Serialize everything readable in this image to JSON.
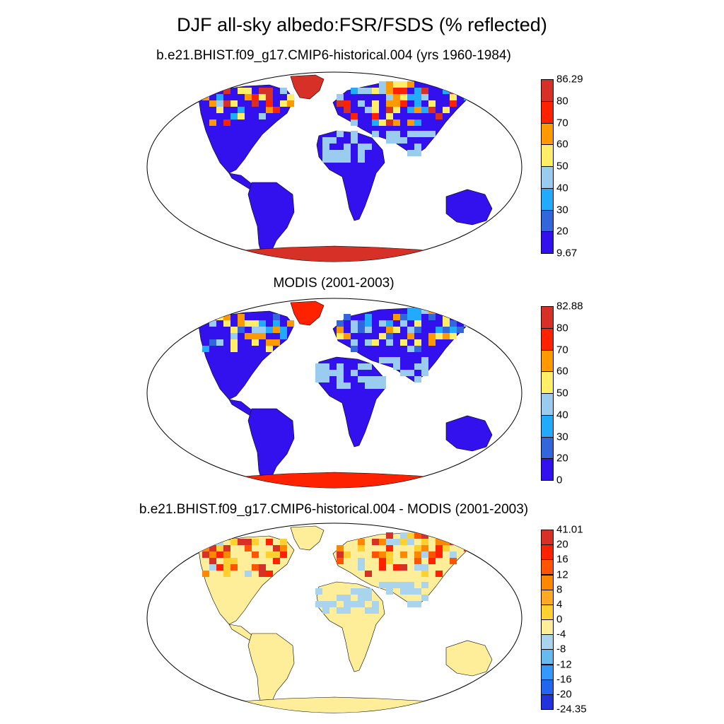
{
  "figure": {
    "title": "DJF all-sky albedo:FSR/FSDS (% reflected)",
    "background": "#ffffff"
  },
  "panels": [
    {
      "title": "b.e21.BHIST.f09_g17.CMIP6-historical.004 (yrs 1960-1984)",
      "colorbar": {
        "labels": [
          "86.29",
          "80",
          "70",
          "60",
          "50",
          "40",
          "30",
          "20",
          "9.67"
        ],
        "colors": [
          "#d73027",
          "#ff2200",
          "#ff9900",
          "#ffee66",
          "#99ccee",
          "#22aaff",
          "#3366dd",
          "#3311ee"
        ]
      },
      "land_color": "#3311ee",
      "ice_color": "#d73027",
      "mid_colors": [
        "#99ccee",
        "#22aaff",
        "#ffee66",
        "#ff9900",
        "#ff2200",
        "#d73027"
      ]
    },
    {
      "title": "MODIS (2001-2003)",
      "colorbar": {
        "labels": [
          "82.88",
          "80",
          "70",
          "60",
          "50",
          "40",
          "30",
          "20",
          "0"
        ],
        "colors": [
          "#d73027",
          "#ff2200",
          "#ff9900",
          "#ffee66",
          "#99ccee",
          "#22aaff",
          "#3366dd",
          "#3311ee"
        ]
      },
      "land_color": "#3311ee",
      "ice_color": "#ff2200",
      "mid_colors": [
        "#99ccee",
        "#22aaff",
        "#ffee66",
        "#ff9900",
        "#3366dd"
      ]
    },
    {
      "title": "b.e21.BHIST.f09_g17.CMIP6-historical.004 - MODIS (2001-2003)",
      "colorbar": {
        "labels": [
          "41.01",
          "20",
          "16",
          "12",
          "8",
          "4",
          "0",
          "-4",
          "-8",
          "-12",
          "-16",
          "-20",
          "-24.35"
        ],
        "colors": [
          "#d73027",
          "#ff2200",
          "#ff5500",
          "#ff8800",
          "#ffaa22",
          "#ffd030",
          "#ffee99",
          "#aad4ee",
          "#66bbee",
          "#3399ff",
          "#2266ee",
          "#2233dd"
        ]
      },
      "land_color": "#ffee99",
      "ice_color": "#ffee99",
      "mid_colors": [
        "#aad4ee",
        "#ff8800",
        "#ff5500",
        "#ff2200",
        "#ffd030",
        "#d73027"
      ]
    }
  ]
}
